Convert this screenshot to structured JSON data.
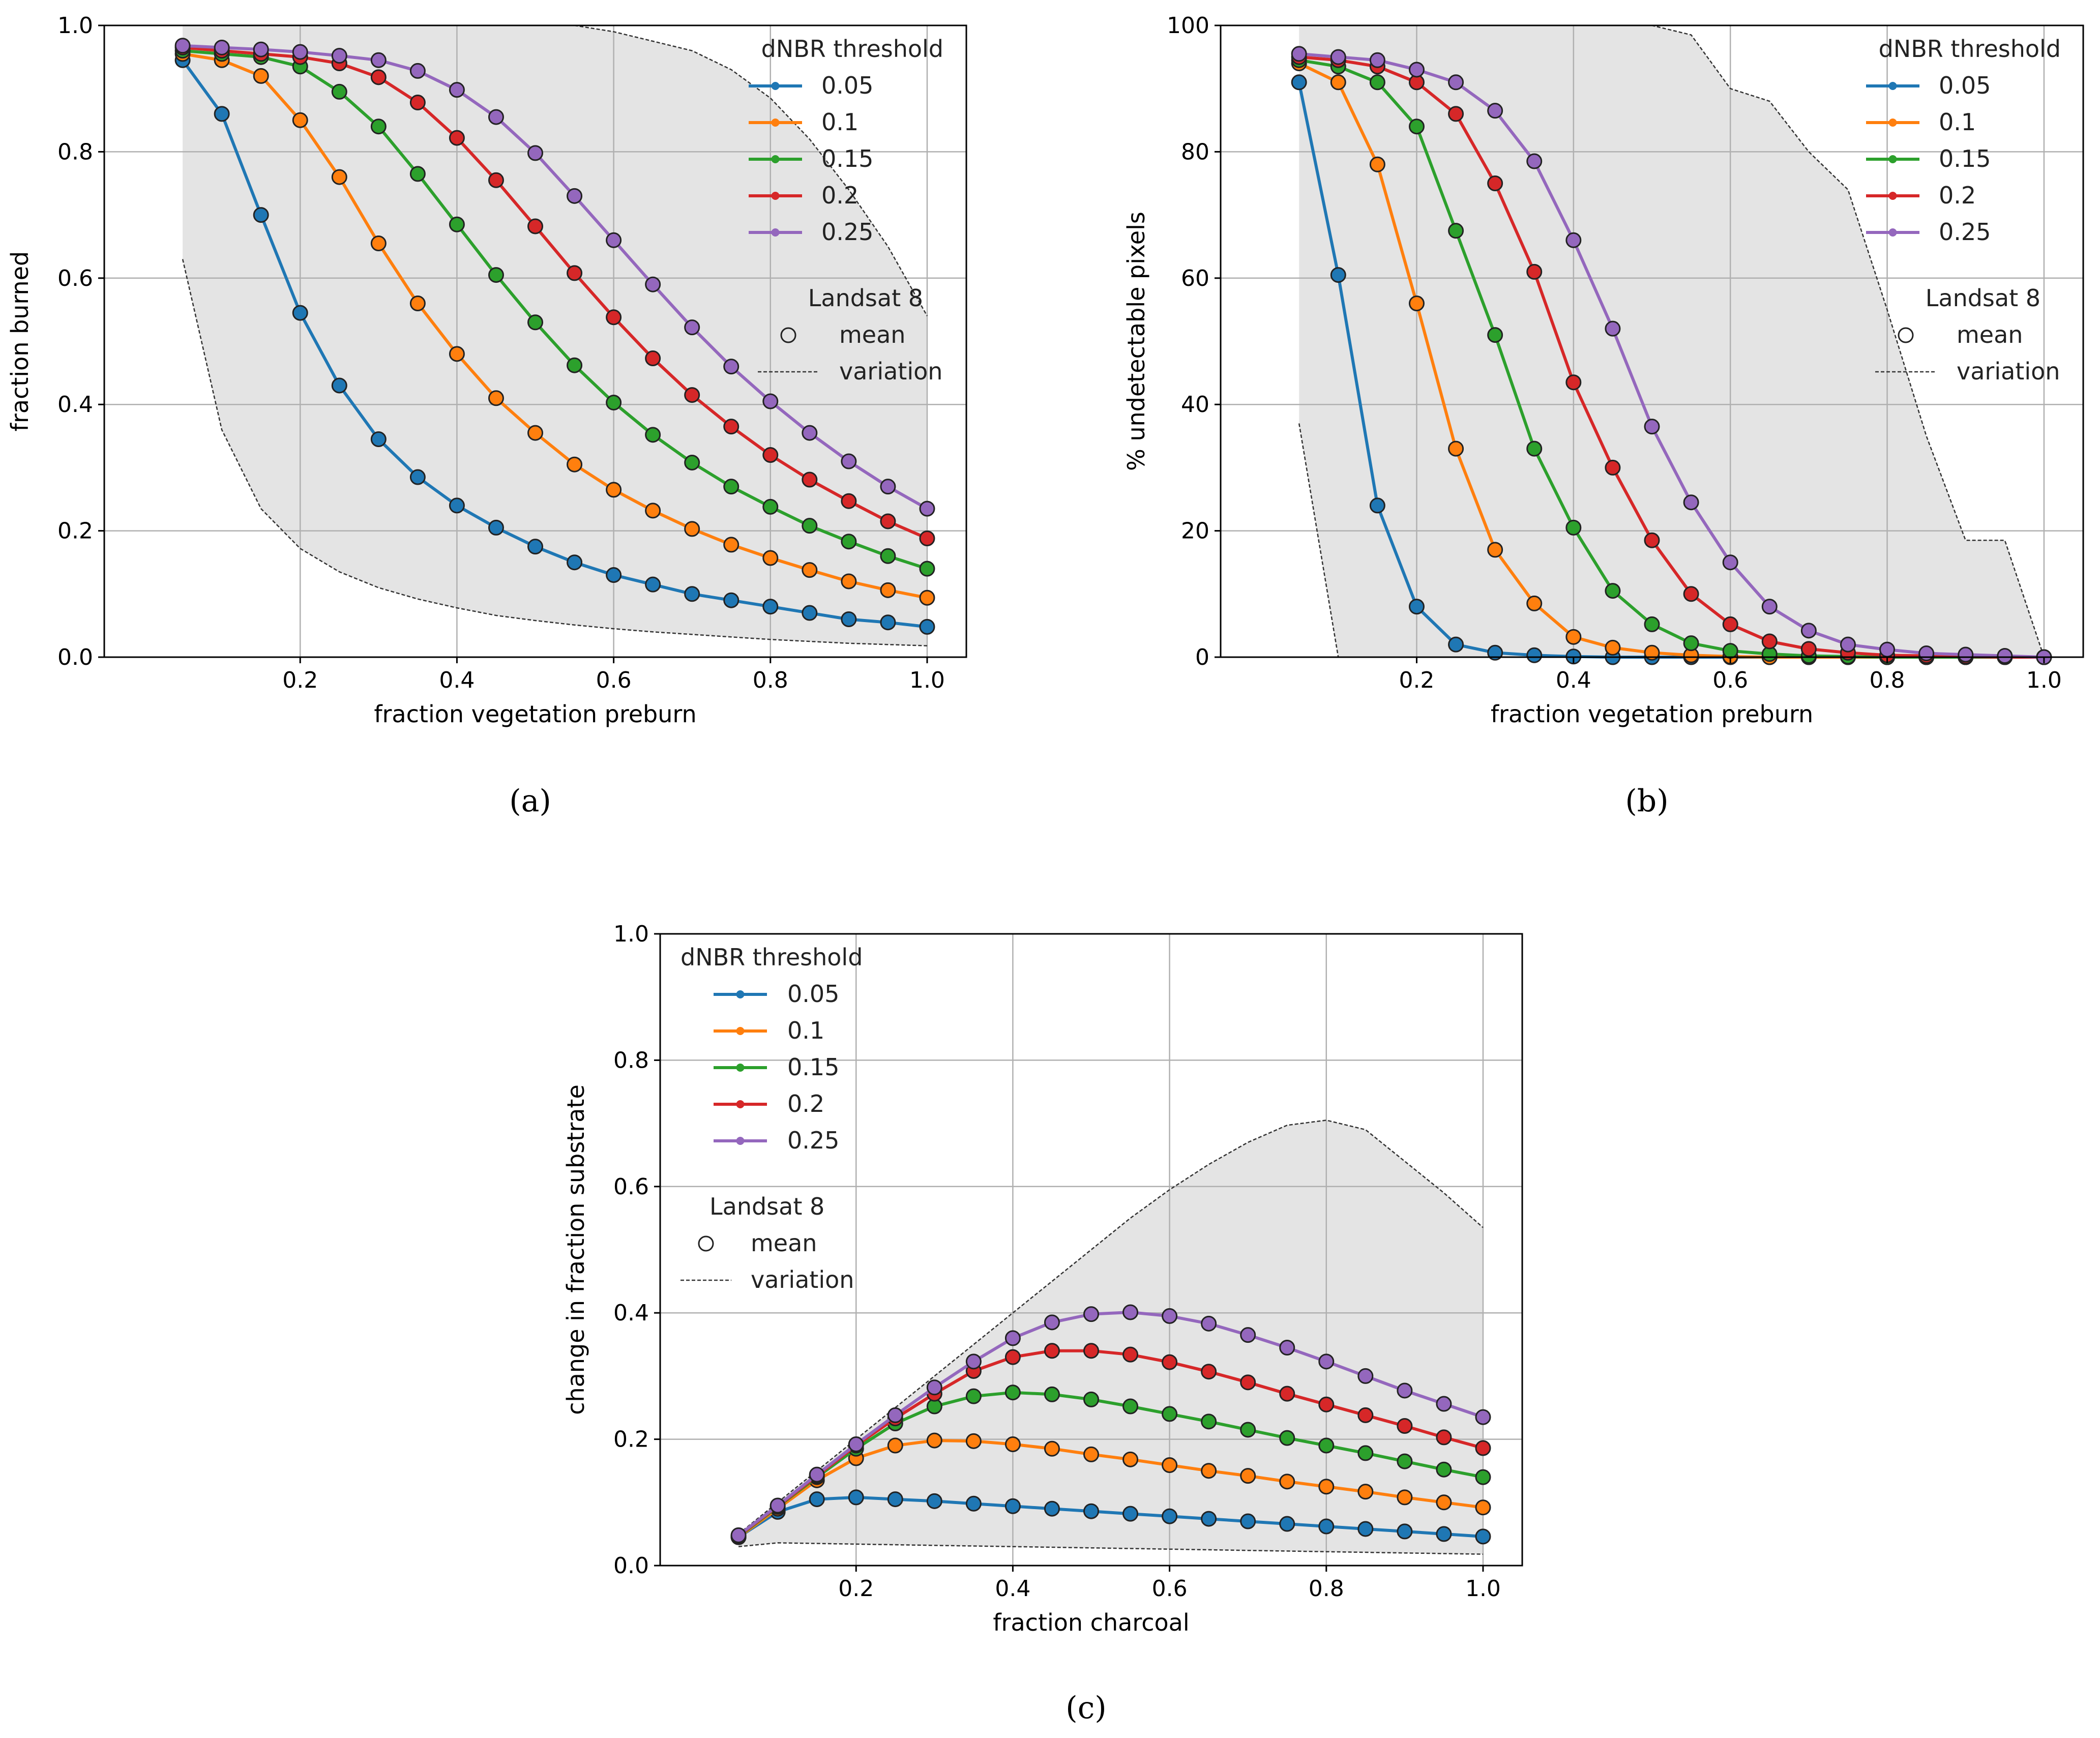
{
  "chart_data": [
    {
      "id": "a",
      "type": "line",
      "panel_label": "(a)",
      "title": "",
      "xlabel": "fraction vegetation preburn",
      "ylabel": "fraction burned",
      "xlim": [
        -0.05,
        1.05
      ],
      "ylim": [
        0.0,
        1.0
      ],
      "xticks": [
        0.2,
        0.4,
        0.6,
        0.8,
        1.0
      ],
      "xtick_labels": [
        "0.2",
        "0.4",
        "0.6",
        "0.8",
        "1.0"
      ],
      "yticks": [
        0.0,
        0.2,
        0.4,
        0.6,
        0.8,
        1.0
      ],
      "ytick_labels": [
        "0.0",
        "0.2",
        "0.4",
        "0.6",
        "0.8",
        "1.0"
      ],
      "grid": true,
      "legend_placement": "top-right",
      "legend_title": "dNBR threshold",
      "legend_title2": "Landsat 8",
      "legend_mean": "mean",
      "legend_variation": "variation",
      "x": [
        0.05,
        0.1,
        0.15,
        0.2,
        0.25,
        0.3,
        0.35,
        0.4,
        0.45,
        0.5,
        0.55,
        0.6,
        0.65,
        0.7,
        0.75,
        0.8,
        0.85,
        0.9,
        0.95,
        1.0
      ],
      "series": [
        {
          "name": "0.05",
          "color": "#1f77b4",
          "values": [
            0.945,
            0.86,
            0.7,
            0.545,
            0.43,
            0.345,
            0.285,
            0.24,
            0.205,
            0.175,
            0.15,
            0.13,
            0.115,
            0.1,
            0.09,
            0.08,
            0.07,
            0.06,
            0.055,
            0.048
          ]
        },
        {
          "name": "0.1",
          "color": "#ff7f0e",
          "values": [
            0.955,
            0.945,
            0.92,
            0.85,
            0.76,
            0.655,
            0.56,
            0.48,
            0.41,
            0.355,
            0.305,
            0.265,
            0.232,
            0.203,
            0.178,
            0.157,
            0.138,
            0.12,
            0.106,
            0.094
          ]
        },
        {
          "name": "0.15",
          "color": "#2ca02c",
          "values": [
            0.96,
            0.955,
            0.95,
            0.935,
            0.895,
            0.84,
            0.765,
            0.685,
            0.605,
            0.53,
            0.462,
            0.403,
            0.352,
            0.308,
            0.27,
            0.238,
            0.208,
            0.183,
            0.16,
            0.14
          ]
        },
        {
          "name": "0.2",
          "color": "#d62728",
          "values": [
            0.965,
            0.96,
            0.955,
            0.95,
            0.94,
            0.918,
            0.878,
            0.822,
            0.755,
            0.682,
            0.608,
            0.538,
            0.473,
            0.415,
            0.365,
            0.32,
            0.281,
            0.247,
            0.215,
            0.188
          ]
        },
        {
          "name": "0.25",
          "color": "#9467bd",
          "values": [
            0.968,
            0.965,
            0.962,
            0.958,
            0.952,
            0.945,
            0.928,
            0.898,
            0.855,
            0.798,
            0.73,
            0.66,
            0.59,
            0.522,
            0.46,
            0.405,
            0.355,
            0.31,
            0.27,
            0.235
          ]
        }
      ],
      "variation_upper": [
        [
          0.05,
          1.0
        ],
        [
          0.55,
          1.0
        ],
        [
          0.6,
          0.99
        ],
        [
          0.65,
          0.975
        ],
        [
          0.7,
          0.96
        ],
        [
          0.75,
          0.93
        ],
        [
          0.8,
          0.885
        ],
        [
          0.85,
          0.82
        ],
        [
          0.9,
          0.74
        ],
        [
          0.95,
          0.65
        ],
        [
          1.0,
          0.54
        ]
      ],
      "variation_lower": [
        [
          0.05,
          0.63
        ],
        [
          0.1,
          0.36
        ],
        [
          0.15,
          0.235
        ],
        [
          0.2,
          0.172
        ],
        [
          0.25,
          0.135
        ],
        [
          0.3,
          0.11
        ],
        [
          0.35,
          0.092
        ],
        [
          0.4,
          0.078
        ],
        [
          0.45,
          0.066
        ],
        [
          0.5,
          0.058
        ],
        [
          0.55,
          0.051
        ],
        [
          0.6,
          0.045
        ],
        [
          0.65,
          0.04
        ],
        [
          0.7,
          0.036
        ],
        [
          0.75,
          0.032
        ],
        [
          0.8,
          0.028
        ],
        [
          0.85,
          0.025
        ],
        [
          0.9,
          0.022
        ],
        [
          0.95,
          0.02
        ],
        [
          1.0,
          0.018
        ]
      ]
    },
    {
      "id": "b",
      "type": "line",
      "panel_label": "(b)",
      "title": "",
      "xlabel": "fraction vegetation preburn",
      "ylabel": "% undetectable pixels",
      "xlim": [
        -0.05,
        1.05
      ],
      "ylim": [
        0,
        100
      ],
      "xticks": [
        0.2,
        0.4,
        0.6,
        0.8,
        1.0
      ],
      "xtick_labels": [
        "0.2",
        "0.4",
        "0.6",
        "0.8",
        "1.0"
      ],
      "yticks": [
        0,
        20,
        40,
        60,
        80,
        100
      ],
      "ytick_labels": [
        "0",
        "20",
        "40",
        "60",
        "80",
        "100"
      ],
      "grid": true,
      "legend_placement": "top-right",
      "legend_title": "dNBR threshold",
      "legend_title2": "Landsat 8",
      "legend_mean": "mean",
      "legend_variation": "variation",
      "x": [
        0.05,
        0.1,
        0.15,
        0.2,
        0.25,
        0.3,
        0.35,
        0.4,
        0.45,
        0.5,
        0.55,
        0.6,
        0.65,
        0.7,
        0.75,
        0.8,
        0.85,
        0.9,
        0.95,
        1.0
      ],
      "series": [
        {
          "name": "0.05",
          "color": "#1f77b4",
          "values": [
            91,
            60.5,
            24,
            8,
            2,
            0.7,
            0.3,
            0.1,
            0,
            0,
            0,
            0,
            0,
            0,
            0,
            0,
            0,
            0,
            0,
            0
          ]
        },
        {
          "name": "0.1",
          "color": "#ff7f0e",
          "values": [
            94,
            91,
            78,
            56,
            33,
            17,
            8.5,
            3.2,
            1.5,
            0.7,
            0.3,
            0.1,
            0,
            0,
            0,
            0,
            0,
            0,
            0,
            0
          ]
        },
        {
          "name": "0.15",
          "color": "#2ca02c",
          "values": [
            94.5,
            93.5,
            91,
            84,
            67.5,
            51,
            33,
            20.5,
            10.5,
            5.2,
            2.2,
            1.0,
            0.5,
            0.2,
            0.1,
            0,
            0,
            0,
            0,
            0
          ]
        },
        {
          "name": "0.2",
          "color": "#d62728",
          "values": [
            95,
            94.5,
            93.5,
            91,
            86,
            75,
            61,
            43.5,
            30,
            18.5,
            10,
            5.2,
            2.5,
            1.3,
            0.7,
            0.3,
            0.2,
            0.1,
            0,
            0
          ]
        },
        {
          "name": "0.25",
          "color": "#9467bd",
          "values": [
            95.5,
            95,
            94.5,
            93,
            91,
            86.5,
            78.5,
            66,
            52,
            36.5,
            24.5,
            15,
            8,
            4.2,
            2,
            1.2,
            0.6,
            0.4,
            0.2,
            0
          ]
        }
      ],
      "variation_upper": [
        [
          0.05,
          100
        ],
        [
          0.5,
          100
        ],
        [
          0.55,
          98.5
        ],
        [
          0.6,
          90
        ],
        [
          0.65,
          88
        ],
        [
          0.7,
          80
        ],
        [
          0.75,
          74
        ],
        [
          0.8,
          55
        ],
        [
          0.85,
          35
        ],
        [
          0.9,
          18.5
        ],
        [
          0.95,
          18.5
        ],
        [
          1.0,
          0
        ]
      ],
      "variation_lower": [
        [
          0.05,
          37
        ],
        [
          0.1,
          0
        ],
        [
          1.0,
          0
        ]
      ]
    },
    {
      "id": "c",
      "type": "line",
      "panel_label": "(c)",
      "title": "",
      "xlabel": "fraction charcoal",
      "ylabel": "change in fraction substrate",
      "xlim": [
        -0.05,
        1.05
      ],
      "ylim": [
        0.0,
        1.0
      ],
      "xticks": [
        0.2,
        0.4,
        0.6,
        0.8,
        1.0
      ],
      "xtick_labels": [
        "0.2",
        "0.4",
        "0.6",
        "0.8",
        "1.0"
      ],
      "yticks": [
        0.0,
        0.2,
        0.4,
        0.6,
        0.8,
        1.0
      ],
      "ytick_labels": [
        "0.0",
        "0.2",
        "0.4",
        "0.6",
        "0.8",
        "1.0"
      ],
      "grid": true,
      "legend_placement": "top-left",
      "legend_title": "dNBR threshold",
      "legend_title2": "Landsat 8",
      "legend_mean": "mean",
      "legend_variation": "variation",
      "x": [
        0.05,
        0.1,
        0.15,
        0.2,
        0.25,
        0.3,
        0.35,
        0.4,
        0.45,
        0.5,
        0.55,
        0.6,
        0.65,
        0.7,
        0.75,
        0.8,
        0.85,
        0.9,
        0.95,
        1.0
      ],
      "series": [
        {
          "name": "0.05",
          "color": "#1f77b4",
          "values": [
            0.045,
            0.085,
            0.105,
            0.108,
            0.105,
            0.102,
            0.098,
            0.094,
            0.09,
            0.086,
            0.082,
            0.078,
            0.074,
            0.07,
            0.066,
            0.062,
            0.058,
            0.054,
            0.05,
            0.046
          ]
        },
        {
          "name": "0.1",
          "color": "#ff7f0e",
          "values": [
            0.045,
            0.09,
            0.135,
            0.17,
            0.19,
            0.198,
            0.197,
            0.192,
            0.185,
            0.176,
            0.168,
            0.159,
            0.15,
            0.142,
            0.133,
            0.125,
            0.117,
            0.108,
            0.1,
            0.092
          ]
        },
        {
          "name": "0.15",
          "color": "#2ca02c",
          "values": [
            0.046,
            0.093,
            0.14,
            0.185,
            0.225,
            0.252,
            0.268,
            0.274,
            0.271,
            0.263,
            0.252,
            0.24,
            0.228,
            0.215,
            0.202,
            0.19,
            0.178,
            0.165,
            0.152,
            0.14
          ]
        },
        {
          "name": "0.2",
          "color": "#d62728",
          "values": [
            0.047,
            0.094,
            0.142,
            0.19,
            0.233,
            0.272,
            0.308,
            0.33,
            0.34,
            0.34,
            0.334,
            0.322,
            0.307,
            0.29,
            0.272,
            0.255,
            0.238,
            0.221,
            0.203,
            0.186
          ]
        },
        {
          "name": "0.25",
          "color": "#9467bd",
          "values": [
            0.048,
            0.095,
            0.144,
            0.192,
            0.238,
            0.282,
            0.323,
            0.36,
            0.385,
            0.398,
            0.401,
            0.395,
            0.383,
            0.365,
            0.345,
            0.323,
            0.3,
            0.277,
            0.256,
            0.235
          ]
        }
      ],
      "variation_upper": [
        [
          0.05,
          0.05
        ],
        [
          0.1,
          0.1
        ],
        [
          0.15,
          0.15
        ],
        [
          0.2,
          0.2
        ],
        [
          0.25,
          0.25
        ],
        [
          0.3,
          0.3
        ],
        [
          0.35,
          0.35
        ],
        [
          0.4,
          0.4
        ],
        [
          0.45,
          0.45
        ],
        [
          0.5,
          0.5
        ],
        [
          0.55,
          0.55
        ],
        [
          0.6,
          0.595
        ],
        [
          0.65,
          0.635
        ],
        [
          0.7,
          0.67
        ],
        [
          0.75,
          0.697
        ],
        [
          0.8,
          0.705
        ],
        [
          0.85,
          0.69
        ],
        [
          0.9,
          0.64
        ],
        [
          0.95,
          0.59
        ],
        [
          1.0,
          0.535
        ]
      ],
      "variation_lower": [
        [
          0.05,
          0.03
        ],
        [
          0.1,
          0.036
        ],
        [
          0.2,
          0.034
        ],
        [
          0.3,
          0.032
        ],
        [
          0.4,
          0.03
        ],
        [
          0.5,
          0.028
        ],
        [
          0.6,
          0.026
        ],
        [
          0.7,
          0.024
        ],
        [
          0.8,
          0.022
        ],
        [
          0.9,
          0.02
        ],
        [
          1.0,
          0.018
        ]
      ]
    }
  ]
}
